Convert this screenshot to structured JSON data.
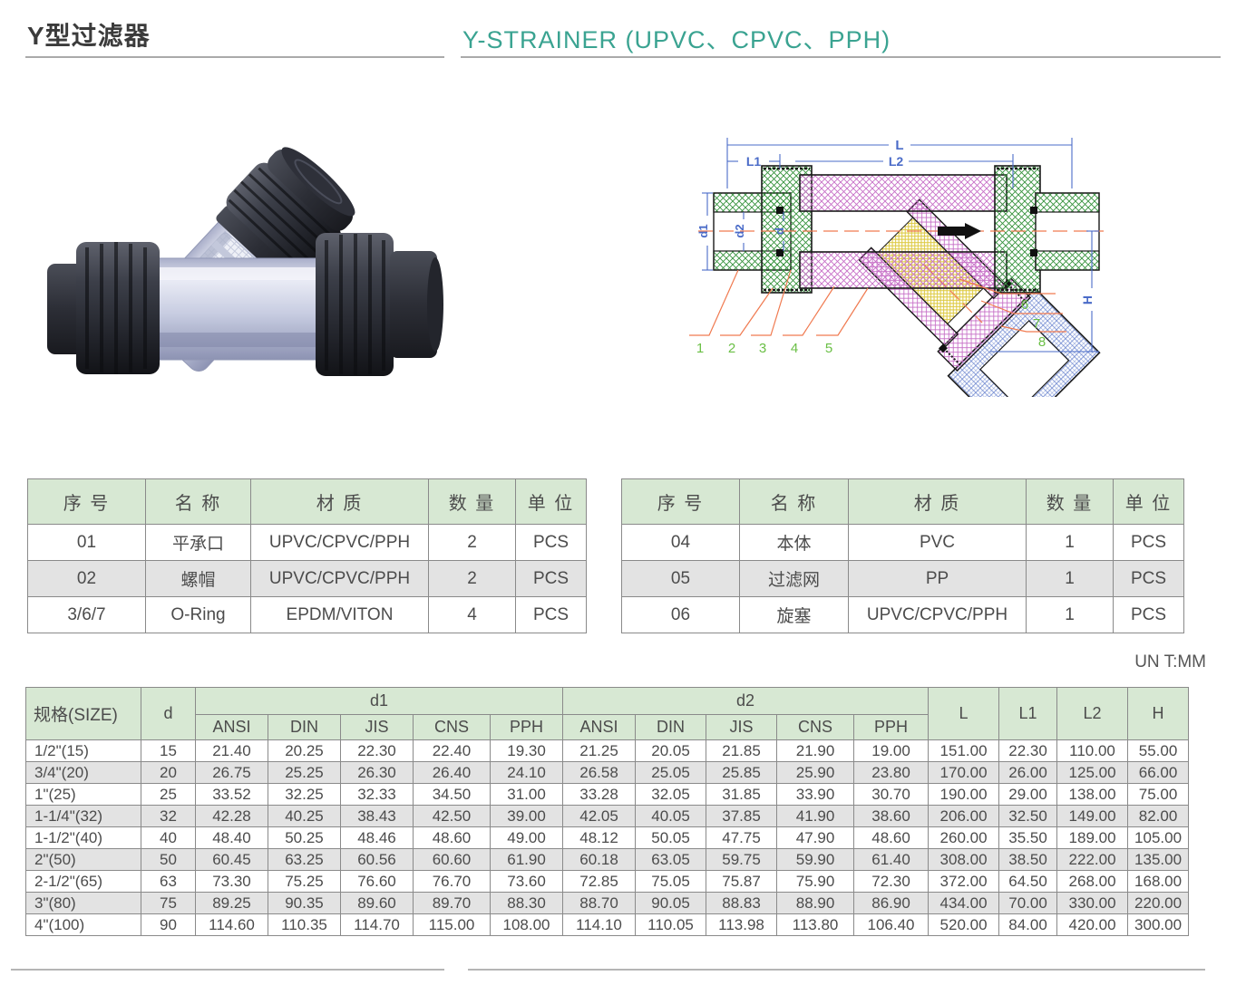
{
  "header": {
    "title_cn": "Y型过滤器",
    "title_en": "Y-STRAINER (UPVC、CPVC、PPH)"
  },
  "diagram": {
    "dims": {
      "L": "L",
      "L1": "L1",
      "L2": "L2",
      "d1": "d1",
      "d2": "d2",
      "d": "d",
      "H": "H"
    },
    "callouts": [
      "1",
      "2",
      "3",
      "4",
      "5",
      "6",
      "7",
      "8"
    ]
  },
  "unit_note": "UN T:MM",
  "parts_tables": [
    {
      "headers": [
        "序 号",
        "名 称",
        "材 质",
        "数 量",
        "单 位"
      ],
      "rows": [
        [
          "01",
          "平承口",
          "UPVC/CPVC/PPH",
          "2",
          "PCS"
        ],
        [
          "02",
          "螺帽",
          "UPVC/CPVC/PPH",
          "2",
          "PCS"
        ],
        [
          "3/6/7",
          "O-Ring",
          "EPDM/VITON",
          "4",
          "PCS"
        ]
      ]
    },
    {
      "headers": [
        "序 号",
        "名 称",
        "材 质",
        "数 量",
        "单 位"
      ],
      "rows": [
        [
          "04",
          "本体",
          "PVC",
          "1",
          "PCS"
        ],
        [
          "05",
          "过滤网",
          "PP",
          "1",
          "PCS"
        ],
        [
          "06",
          "旋塞",
          "UPVC/CPVC/PPH",
          "1",
          "PCS"
        ]
      ]
    }
  ],
  "size_table": {
    "col_size": "规格(SIZE)",
    "col_d": "d",
    "col_d1": "d1",
    "col_d2": "d2",
    "col_L": "L",
    "col_L1": "L1",
    "col_L2": "L2",
    "col_H": "H",
    "standards": [
      "ANSI",
      "DIN",
      "JIS",
      "CNS",
      "PPH"
    ],
    "rows": [
      [
        "1/2\"(15)",
        "15",
        "21.40",
        "20.25",
        "22.30",
        "22.40",
        "19.30",
        "21.25",
        "20.05",
        "21.85",
        "21.90",
        "19.00",
        "151.00",
        "22.30",
        "110.00",
        "55.00"
      ],
      [
        "3/4\"(20)",
        "20",
        "26.75",
        "25.25",
        "26.30",
        "26.40",
        "24.10",
        "26.58",
        "25.05",
        "25.85",
        "25.90",
        "23.80",
        "170.00",
        "26.00",
        "125.00",
        "66.00"
      ],
      [
        "1\"(25)",
        "25",
        "33.52",
        "32.25",
        "32.33",
        "34.50",
        "31.00",
        "33.28",
        "32.05",
        "31.85",
        "33.90",
        "30.70",
        "190.00",
        "29.00",
        "138.00",
        "75.00"
      ],
      [
        "1-1/4\"(32)",
        "32",
        "42.28",
        "40.25",
        "38.43",
        "42.50",
        "39.00",
        "42.05",
        "40.05",
        "37.85",
        "41.90",
        "38.60",
        "206.00",
        "32.50",
        "149.00",
        "82.00"
      ],
      [
        "1-1/2\"(40)",
        "40",
        "48.40",
        "50.25",
        "48.46",
        "48.60",
        "49.00",
        "48.12",
        "50.05",
        "47.75",
        "47.90",
        "48.60",
        "260.00",
        "35.50",
        "189.00",
        "105.00"
      ],
      [
        "2\"(50)",
        "50",
        "60.45",
        "63.25",
        "60.56",
        "60.60",
        "61.90",
        "60.18",
        "63.05",
        "59.75",
        "59.90",
        "61.40",
        "308.00",
        "38.50",
        "222.00",
        "135.00"
      ],
      [
        "2-1/2\"(65)",
        "63",
        "73.30",
        "75.25",
        "76.60",
        "76.70",
        "73.60",
        "72.85",
        "75.05",
        "75.87",
        "75.90",
        "72.30",
        "372.00",
        "64.50",
        "268.00",
        "168.00"
      ],
      [
        "3\"(80)",
        "75",
        "89.25",
        "90.35",
        "89.60",
        "89.70",
        "88.30",
        "88.70",
        "90.05",
        "88.83",
        "88.90",
        "86.90",
        "434.00",
        "70.00",
        "330.00",
        "220.00"
      ],
      [
        "4\"(100)",
        "90",
        "114.60",
        "110.35",
        "114.70",
        "115.00",
        "108.00",
        "114.10",
        "110.05",
        "113.98",
        "113.80",
        "106.40",
        "520.00",
        "84.00",
        "420.00",
        "300.00"
      ]
    ]
  }
}
